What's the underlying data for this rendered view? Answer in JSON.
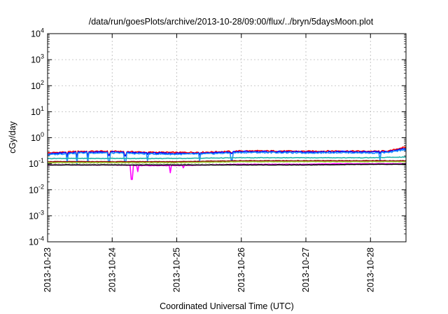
{
  "chart_data": {
    "type": "line",
    "title": "/data/run/goesPlots/archive/2013-10-28/09:00/flux/../bryn/5daysMoon.plot",
    "xlabel": "Coordinated Universal Time (UTC)",
    "ylabel": "cGy/day",
    "y_scale": "log",
    "ylim_exp": [
      -4,
      4
    ],
    "y_tick_exponents": [
      -4,
      -3,
      -2,
      -1,
      0,
      1,
      2,
      3,
      4
    ],
    "y_tick_base": "10",
    "xlim_days": [
      0,
      5.55
    ],
    "x_ticks": [
      {
        "day": 0,
        "label": "2013-10-23"
      },
      {
        "day": 1,
        "label": "2013-10-24"
      },
      {
        "day": 2,
        "label": "2013-10-25"
      },
      {
        "day": 3,
        "label": "2013-10-26"
      },
      {
        "day": 4,
        "label": "2013-10-27"
      },
      {
        "day": 5,
        "label": "2013-10-28"
      }
    ],
    "grid": true,
    "series": [
      {
        "color": "#ff0000",
        "baseline": 0.29,
        "amp": 0.09,
        "dips": [
          [
            0.3,
            0.2
          ],
          [
            0.45,
            0.18
          ],
          [
            0.62,
            0.2
          ],
          [
            0.95,
            0.22
          ],
          [
            1.2,
            0.21
          ],
          [
            1.55,
            0.24
          ],
          [
            2.35,
            0.23
          ],
          [
            2.85,
            0.26
          ],
          [
            5.15,
            0.26
          ]
        ],
        "points": [
          [
            0,
            0.26
          ],
          [
            0.5,
            0.3
          ],
          [
            1,
            0.3
          ],
          [
            1.5,
            0.28
          ],
          [
            2,
            0.27
          ],
          [
            2.5,
            0.28
          ],
          [
            3,
            0.31
          ],
          [
            3.5,
            0.31
          ],
          [
            4,
            0.3
          ],
          [
            4.5,
            0.31
          ],
          [
            5,
            0.3
          ],
          [
            5.3,
            0.31
          ],
          [
            5.5,
            0.42
          ]
        ]
      },
      {
        "color": "#0000ff",
        "baseline": 0.27,
        "amp": 0.09,
        "dips": [
          [
            0.3,
            0.19
          ],
          [
            0.45,
            0.17
          ],
          [
            0.62,
            0.19
          ],
          [
            0.95,
            0.21
          ],
          [
            1.2,
            0.2
          ],
          [
            1.55,
            0.23
          ],
          [
            2.35,
            0.22
          ],
          [
            2.85,
            0.25
          ],
          [
            5.15,
            0.25
          ]
        ],
        "points": [
          [
            0,
            0.24
          ],
          [
            0.5,
            0.28
          ],
          [
            1,
            0.28
          ],
          [
            1.5,
            0.26
          ],
          [
            2,
            0.25
          ],
          [
            2.5,
            0.26
          ],
          [
            3,
            0.29
          ],
          [
            3.5,
            0.29
          ],
          [
            4,
            0.28
          ],
          [
            4.5,
            0.29
          ],
          [
            5,
            0.28
          ],
          [
            5.3,
            0.29
          ],
          [
            5.5,
            0.38
          ]
        ]
      },
      {
        "color": "#1e90ff",
        "baseline": 0.25,
        "amp": 0.09,
        "dips": [
          [
            0.3,
            0.11
          ],
          [
            0.45,
            0.1
          ],
          [
            0.62,
            0.11
          ],
          [
            0.95,
            0.12
          ],
          [
            1.2,
            0.11
          ],
          [
            1.55,
            0.13
          ],
          [
            2.35,
            0.13
          ],
          [
            2.85,
            0.14
          ],
          [
            5.15,
            0.14
          ]
        ],
        "points": [
          [
            0,
            0.22
          ],
          [
            0.5,
            0.26
          ],
          [
            1,
            0.26
          ],
          [
            1.5,
            0.24
          ],
          [
            2,
            0.23
          ],
          [
            2.5,
            0.24
          ],
          [
            3,
            0.27
          ],
          [
            3.5,
            0.27
          ],
          [
            4,
            0.26
          ],
          [
            4.5,
            0.27
          ],
          [
            5,
            0.26
          ],
          [
            5.3,
            0.27
          ],
          [
            5.5,
            0.34
          ]
        ]
      },
      {
        "color": "#20b2aa",
        "baseline": 0.165,
        "amp": 0.04,
        "dips": [],
        "points": [
          [
            0,
            0.16
          ],
          [
            1,
            0.16
          ],
          [
            2,
            0.16
          ],
          [
            3,
            0.17
          ],
          [
            4,
            0.17
          ],
          [
            5,
            0.17
          ],
          [
            5.5,
            0.18
          ]
        ]
      },
      {
        "color": "#8b0000",
        "baseline": 0.125,
        "amp": 0.03,
        "dips": [],
        "points": [
          [
            0,
            0.12
          ],
          [
            1,
            0.12
          ],
          [
            2,
            0.12
          ],
          [
            3,
            0.13
          ],
          [
            4,
            0.13
          ],
          [
            5,
            0.13
          ],
          [
            5.5,
            0.13
          ]
        ]
      },
      {
        "color": "#9acd32",
        "baseline": 0.115,
        "amp": 0.03,
        "dips": [],
        "points": [
          [
            0,
            0.11
          ],
          [
            1,
            0.11
          ],
          [
            2,
            0.11
          ],
          [
            3,
            0.12
          ],
          [
            4,
            0.12
          ],
          [
            5,
            0.12
          ],
          [
            5.5,
            0.12
          ]
        ]
      },
      {
        "color": "#ff00ff",
        "baseline": 0.095,
        "amp": 0.03,
        "dips": [
          [
            1.3,
            0.025
          ],
          [
            1.4,
            0.05
          ],
          [
            1.9,
            0.045
          ],
          [
            2.1,
            0.07
          ]
        ],
        "points": [
          [
            0,
            0.09
          ],
          [
            0.5,
            0.09
          ],
          [
            1,
            0.09
          ],
          [
            1.5,
            0.085
          ],
          [
            2,
            0.085
          ],
          [
            2.5,
            0.09
          ],
          [
            3,
            0.095
          ],
          [
            3.5,
            0.095
          ],
          [
            4,
            0.095
          ],
          [
            4.5,
            0.1
          ],
          [
            5,
            0.1
          ],
          [
            5.5,
            0.1
          ]
        ]
      },
      {
        "color": "#000000",
        "baseline": 0.092,
        "amp": 0.02,
        "dips": [],
        "points": [
          [
            0,
            0.09
          ],
          [
            1,
            0.09
          ],
          [
            2,
            0.09
          ],
          [
            3,
            0.09
          ],
          [
            4,
            0.09
          ],
          [
            5,
            0.095
          ],
          [
            5.5,
            0.095
          ]
        ]
      }
    ]
  }
}
